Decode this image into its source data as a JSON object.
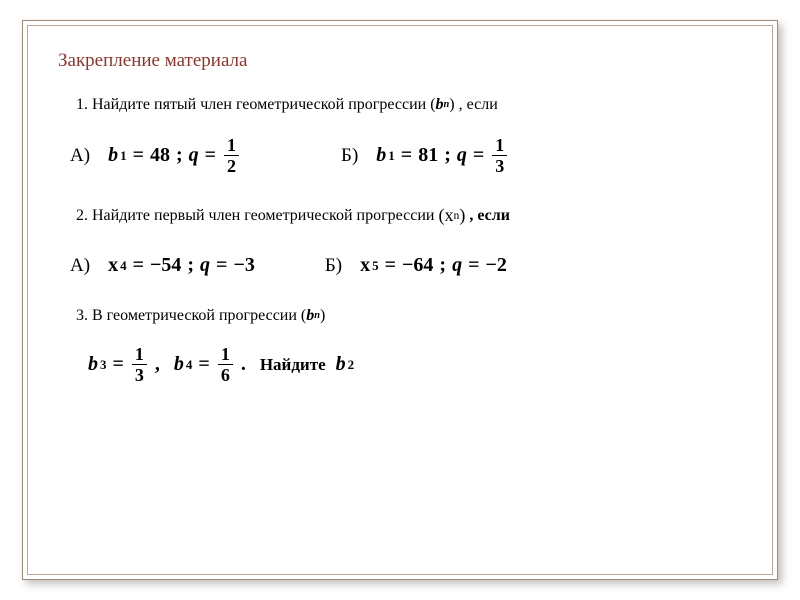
{
  "colors": {
    "title": "#8d352d",
    "text": "#000000",
    "frame_outer": "#9a8a7a",
    "frame_inner": "#b8aa9a",
    "shadow": "rgba(90,70,60,0.35)"
  },
  "fonts": {
    "title_size": 19,
    "body_size": 16,
    "math_size": 20
  },
  "title": "Закрепление материала",
  "p1": {
    "text_a": "1. Найдите пятый член геометрической прогрессии ",
    "seq_var": "b",
    "seq_sub": "n",
    "text_b": " , если",
    "opt_a_label": "А)",
    "opt_a_b1": "b",
    "opt_a_b1_sub": "1",
    "opt_a_b1_val": "48",
    "opt_a_q": "q",
    "opt_a_q_num": "1",
    "opt_a_q_den": "2",
    "opt_b_label": "Б)",
    "opt_b_b1": "b",
    "opt_b_b1_sub": "1",
    "opt_b_b1_val": "81",
    "opt_b_q": "q",
    "opt_b_q_num": "1",
    "opt_b_q_den": "3"
  },
  "p2": {
    "text_a": "2. Найдите первый член геометрической прогрессии ",
    "seq_var": "x",
    "seq_sub": "n",
    "text_b": ", если",
    "opt_a_label": "А)",
    "opt_a_x": "x",
    "opt_a_x_sub": "4",
    "opt_a_x_val": "−54",
    "opt_a_q": "q",
    "opt_a_q_val": "−3",
    "opt_b_label": "Б)",
    "opt_b_x": "x",
    "opt_b_x_sub": "5",
    "opt_b_x_val": "−64",
    "opt_b_q": "q",
    "opt_b_q_val": "−2"
  },
  "p3": {
    "text_a": "3. В геометрической прогрессии ",
    "seq_var": "b",
    "seq_sub": "n",
    "b3": "b",
    "b3_sub": "3",
    "b3_num": "1",
    "b3_den": "3",
    "b4": "b",
    "b4_sub": "4",
    "b4_num": "1",
    "b4_den": "6",
    "find_text": "Найдите ",
    "find_var": "b",
    "find_sub": "2"
  }
}
